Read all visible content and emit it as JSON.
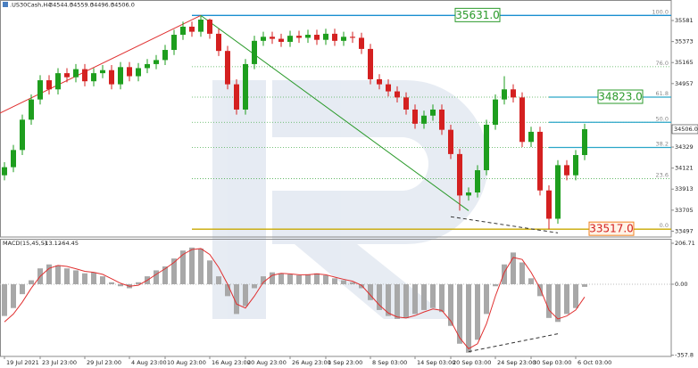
{
  "chart_data": [
    {
      "type": "candlestick",
      "title": ".US30Cash,H4",
      "header": [
        {
          "value": 34544,
          "label": "34544.0"
        },
        {
          "value": 34559,
          "label": "34559.0"
        },
        {
          "value": 34496,
          "label": "34496.0"
        },
        {
          "value": 34506,
          "label": "34506.0"
        }
      ],
      "up_color": "#1e9e1e",
      "down_color": "#d42020",
      "open": [
        34050,
        34130,
        34300,
        34600,
        34800,
        34990,
        34900,
        35060,
        35020,
        35100,
        34980,
        35060,
        35090,
        34950,
        35120,
        35030,
        35110,
        35150,
        35190,
        35290,
        35440,
        35520,
        35470,
        35590,
        35450,
        35280,
        34950,
        34700,
        35150,
        35380,
        35420,
        35400,
        35370,
        35430,
        35410,
        35440,
        35390,
        35450,
        35380,
        35420,
        35410,
        35300,
        35000,
        34950,
        34880,
        34820,
        34700,
        34560,
        34640,
        34700,
        34500,
        34260,
        33850,
        33880,
        34100,
        34550,
        34800,
        34900,
        34820,
        34380,
        34480,
        33900,
        33620,
        34150,
        34050,
        34250
      ],
      "high": [
        34180,
        34350,
        34650,
        34850,
        35040,
        35040,
        35110,
        35110,
        35150,
        35150,
        35110,
        35140,
        35140,
        35170,
        35170,
        35160,
        35200,
        35240,
        35340,
        35490,
        35570,
        35570,
        35631,
        35600,
        35500,
        35330,
        35000,
        35200,
        35430,
        35470,
        35470,
        35450,
        35480,
        35480,
        35490,
        35490,
        35500,
        35500,
        35470,
        35470,
        35460,
        35350,
        35050,
        35000,
        34930,
        34870,
        34750,
        34690,
        34750,
        34750,
        34550,
        34310,
        33930,
        34150,
        34600,
        34850,
        35030,
        34950,
        34870,
        34530,
        34530,
        33950,
        34200,
        34200,
        34300,
        34560
      ],
      "low": [
        34000,
        34080,
        34250,
        34550,
        34750,
        34850,
        34850,
        34970,
        34970,
        34930,
        34930,
        35010,
        34900,
        34900,
        34980,
        34980,
        35060,
        35100,
        35140,
        35240,
        35390,
        35420,
        35420,
        35400,
        35230,
        34900,
        34650,
        34650,
        35100,
        35330,
        35350,
        35320,
        35320,
        35360,
        35360,
        35340,
        35340,
        35330,
        35330,
        35360,
        35250,
        34950,
        34900,
        34830,
        34770,
        34650,
        34510,
        34510,
        34590,
        34450,
        34210,
        33700,
        33800,
        33830,
        34050,
        34500,
        34750,
        34770,
        34330,
        34330,
        33850,
        33517,
        33570,
        34000,
        34000,
        34200
      ],
      "close": [
        34130,
        34300,
        34600,
        34800,
        34990,
        34900,
        35060,
        35020,
        35100,
        34980,
        35060,
        35090,
        34950,
        35120,
        35030,
        35110,
        35150,
        35190,
        35290,
        35440,
        35520,
        35470,
        35590,
        35450,
        35280,
        34950,
        34700,
        35150,
        35380,
        35420,
        35400,
        35370,
        35430,
        35410,
        35440,
        35390,
        35450,
        35380,
        35420,
        35410,
        35300,
        35000,
        34950,
        34880,
        34820,
        34700,
        34560,
        34640,
        34700,
        34500,
        34260,
        33850,
        33880,
        34100,
        34550,
        34800,
        34900,
        34820,
        34380,
        34480,
        33900,
        33620,
        34150,
        34050,
        34250,
        34506
      ],
      "xlim": [
        -0.5,
        74.7
      ],
      "ylim": [
        33448,
        35784
      ],
      "yticks": [
        35581,
        35373,
        35165,
        34957,
        34329,
        34121,
        33913,
        33705,
        33497
      ],
      "current": {
        "value": 34506,
        "label": "34506.0"
      },
      "fib_start": 21,
      "fib": [
        {
          "label": "100.0",
          "value": 35631,
          "color": "#1a8fd0",
          "dotted": false
        },
        {
          "label": "76.0",
          "value": 35124,
          "color": "#4caf50",
          "dotted": true
        },
        {
          "label": "61.8",
          "value": 34823,
          "color": "#4caf50",
          "dotted": true
        },
        {
          "label": "50.0",
          "value": 34574,
          "color": "#4caf50",
          "dotted": true
        },
        {
          "label": "38.2",
          "value": 34325,
          "color": "#4caf50",
          "dotted": true
        },
        {
          "label": "23.6",
          "value": 34016,
          "color": "#4caf50",
          "dotted": true
        },
        {
          "label": "0.0",
          "value": 33517,
          "color": "#c8a800",
          "dotted": false
        }
      ],
      "hline_start": 61,
      "hline_color": "#2aa6c8",
      "hlines": [
        34823,
        34574,
        34325
      ],
      "annotations": [
        {
          "value": 35631,
          "label": "35631.0",
          "at": 53,
          "color": "#2a9a2a"
        },
        {
          "value": 34823,
          "label": "34823.0",
          "at": 69,
          "color": "#2a9a2a"
        },
        {
          "value": 33517,
          "label": "33517.0",
          "at": 68,
          "color": "#f08020"
        }
      ],
      "trendlines": [
        {
          "color": "#e03030",
          "dashed": false,
          "x": [
            -0.5,
            22
          ],
          "y": [
            34665,
            35631
          ]
        },
        {
          "color": "#2a9a2a",
          "dashed": false,
          "x": [
            22,
            52
          ],
          "y": [
            35631,
            33700
          ]
        },
        {
          "color": "#333333",
          "dashed": true,
          "x": [
            50,
            62
          ],
          "y": [
            33640,
            33480
          ]
        }
      ]
    },
    {
      "type": "macd",
      "title": "MACD(15,45,5)",
      "hist_color": "#a8a8a8",
      "signal_color": "#e03030",
      "histogram": [
        -160,
        -120,
        -50,
        20,
        80,
        100,
        95,
        80,
        70,
        55,
        60,
        40,
        10,
        -10,
        -20,
        10,
        40,
        70,
        90,
        130,
        170,
        185,
        180,
        120,
        40,
        -60,
        -150,
        -110,
        -20,
        40,
        60,
        55,
        50,
        45,
        50,
        55,
        45,
        30,
        20,
        10,
        -20,
        -80,
        -130,
        -160,
        -175,
        -170,
        -150,
        -130,
        -120,
        -140,
        -210,
        -300,
        -345,
        -280,
        -150,
        -10,
        100,
        160,
        110,
        30,
        -60,
        -170,
        -190,
        -150,
        -120,
        -13.12
      ],
      "signal": [
        -190,
        -150,
        -90,
        -20,
        40,
        80,
        95,
        90,
        78,
        65,
        60,
        50,
        28,
        5,
        -10,
        -5,
        20,
        50,
        78,
        110,
        150,
        175,
        180,
        150,
        85,
        0,
        -100,
        -120,
        -60,
        10,
        45,
        55,
        52,
        48,
        48,
        52,
        48,
        36,
        25,
        15,
        -5,
        -55,
        -105,
        -145,
        -165,
        -170,
        -158,
        -140,
        -125,
        -132,
        -185,
        -270,
        -325,
        -300,
        -200,
        -60,
        60,
        135,
        125,
        60,
        -20,
        -130,
        -175,
        -160,
        -130,
        -64.45
      ],
      "xlim": [
        -0.5,
        74.7
      ],
      "ylim": [
        -364,
        229.2
      ],
      "yticks": [
        206.71,
        {
          "value": 0,
          "label": "0.00"
        },
        -357.8
      ],
      "trendlines": [
        {
          "color": "#333333",
          "dashed": true,
          "x": [
            52,
            62
          ],
          "y": [
            -340,
            -250
          ]
        }
      ],
      "xticks": [
        {
          "value": 0,
          "label": "19 Jul 2021"
        },
        {
          "value": 4,
          "label": "23 Jul 23:00"
        },
        {
          "value": 9,
          "label": "29 Jul 23:00"
        },
        {
          "value": 14,
          "label": "4 Aug 23:00"
        },
        {
          "value": 18,
          "label": "10 Aug 23:00"
        },
        {
          "value": 23,
          "label": "16 Aug 23:00"
        },
        {
          "value": 27,
          "label": "20 Aug 23:00"
        },
        {
          "value": 32,
          "label": "26 Aug 23:00"
        },
        {
          "value": 36,
          "label": "1 Sep 23:00"
        },
        {
          "value": 41,
          "label": "8 Sep 03:00"
        },
        {
          "value": 46,
          "label": "14 Sep 03:00"
        },
        {
          "value": 50,
          "label": "20 Sep 03:00"
        },
        {
          "value": 55,
          "label": "24 Sep 23:00"
        },
        {
          "value": 59,
          "label": "30 Sep 03:00"
        },
        {
          "value": 64,
          "label": "6 Oct 03:00"
        }
      ]
    }
  ]
}
